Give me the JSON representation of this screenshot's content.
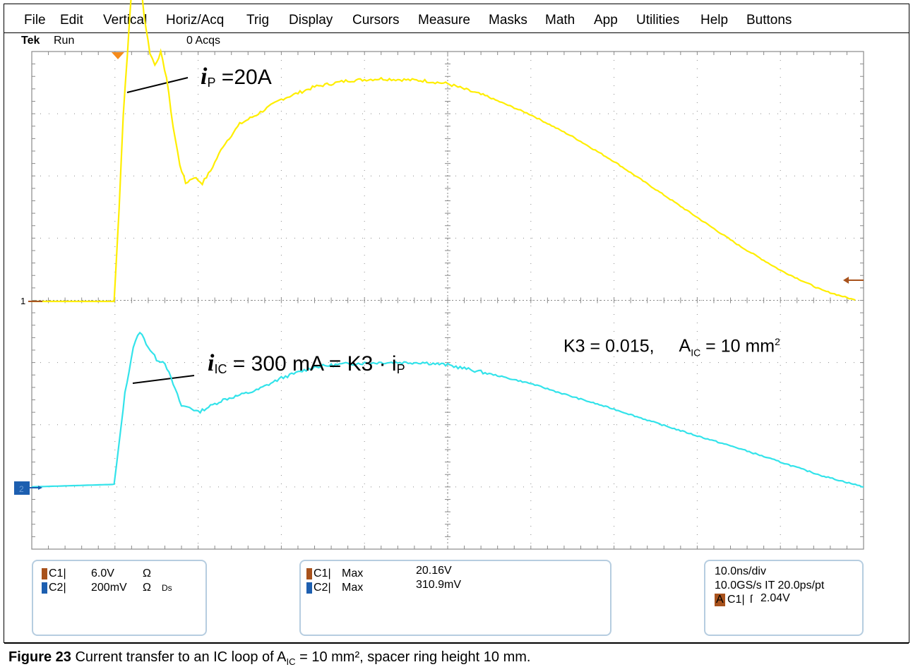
{
  "menubar": {
    "items": [
      "File",
      "Edit",
      "Vertical",
      "Horiz/Acq",
      "Trig",
      "Display",
      "Cursors",
      "Measure",
      "Masks",
      "Math",
      "App",
      "Utilities",
      "Help",
      "Buttons"
    ]
  },
  "status": {
    "brand": "Tek",
    "state": "Run",
    "acqs": "0 Acqs"
  },
  "markers": {
    "ch1_ground": "1",
    "ch2_ground": "2"
  },
  "annotations": {
    "ip_symbol": "i",
    "ip_sub": "P",
    "ip_text": " =20A",
    "iic_symbol": "i",
    "iic_sub": "IC",
    "iic_text": " = 300 mA = K3 · i",
    "iic_tail_sub": "P",
    "k3_text": "K3 = 0.015,",
    "aic_a": "A",
    "aic_sub": "IC",
    "aic_text": " = 10 mm",
    "aic_sup": "2"
  },
  "channel_box": {
    "ch1_label": "C1|",
    "ch1_scale": "6.0V",
    "ch1_imp": "Ω",
    "ch2_label": "C2|",
    "ch2_scale": "200mV",
    "ch2_imp": "Ω",
    "ch2_extra": "Ds"
  },
  "measure_box": {
    "m1_label": "C1|",
    "m1_type": "Max",
    "m1_value": "20.16V",
    "m2_label": "C2|",
    "m2_type": "Max",
    "m2_value": "310.9mV"
  },
  "timebase_box": {
    "horiz": "10.0ns/div",
    "sample": "10.0GS/s IT 20.0ps/pt",
    "trig_mode": "A",
    "trig_src": "C1|",
    "trig_slope": "ſ",
    "trig_level": "2.04V"
  },
  "caption": {
    "figure_label": "Figure 23",
    "text_pre": " Current transfer to an IC loop of A",
    "text_sub": "IC",
    "text_post": " = 10 mm², spacer ring height 10 mm."
  },
  "colors": {
    "ch1": "#ffee00",
    "ch2": "#33e3ea",
    "grid": "#8a8a8a",
    "trigger_marker": "#f58a1a",
    "ch1_swatch": "#a8521c",
    "ch2_swatch": "#1d5fb0",
    "box_border": "#b6cde0"
  },
  "chart_data": {
    "type": "line",
    "xlabel": "",
    "ylabel": "",
    "x_range_divisions": [
      0,
      10
    ],
    "y_range_divisions": [
      0,
      8
    ],
    "series": [
      {
        "name": "C1",
        "x": [
          0.0,
          0.5,
          0.99,
          1.05,
          1.1,
          1.2,
          1.25,
          1.3,
          1.35,
          1.42,
          1.48,
          1.55,
          1.62,
          1.7,
          1.78,
          1.85,
          1.95,
          2.05,
          2.15,
          2.3,
          2.5,
          2.7,
          3.0,
          3.4,
          3.8,
          4.2,
          4.7,
          5.0,
          5.5,
          6.0,
          6.5,
          7.0,
          7.5,
          8.0,
          8.5,
          9.0,
          9.5,
          9.9
        ],
        "y": [
          0.0,
          0.0,
          0.0,
          1.5,
          3.0,
          5.0,
          5.5,
          5.3,
          4.6,
          4.0,
          3.8,
          4.0,
          3.6,
          2.8,
          2.2,
          1.9,
          2.0,
          1.9,
          2.1,
          2.5,
          2.85,
          3.0,
          3.25,
          3.45,
          3.55,
          3.58,
          3.55,
          3.5,
          3.28,
          3.0,
          2.65,
          2.25,
          1.8,
          1.35,
          0.9,
          0.5,
          0.18,
          0.02
        ]
      },
      {
        "name": "C2",
        "x": [
          0.0,
          0.5,
          0.99,
          1.05,
          1.12,
          1.22,
          1.3,
          1.4,
          1.5,
          1.6,
          1.7,
          1.8,
          1.9,
          2.0,
          2.3,
          2.7,
          3.0,
          3.4,
          3.8,
          4.2,
          4.7,
          5.0,
          5.5,
          6.0,
          6.5,
          7.0,
          7.5,
          8.0,
          8.5,
          9.0,
          9.5,
          10.0
        ],
        "y": [
          -0.1,
          -0.08,
          -0.06,
          0.6,
          1.4,
          2.15,
          2.4,
          2.15,
          1.95,
          1.9,
          1.55,
          1.2,
          1.18,
          1.1,
          1.3,
          1.45,
          1.65,
          1.83,
          1.88,
          1.9,
          1.9,
          1.86,
          1.72,
          1.56,
          1.35,
          1.15,
          0.93,
          0.72,
          0.52,
          0.3,
          0.08,
          -0.1
        ]
      }
    ],
    "measurements": [
      {
        "channel": "C1",
        "type": "Max",
        "value": "20.16V"
      },
      {
        "channel": "C2",
        "type": "Max",
        "value": "310.9mV"
      }
    ]
  }
}
